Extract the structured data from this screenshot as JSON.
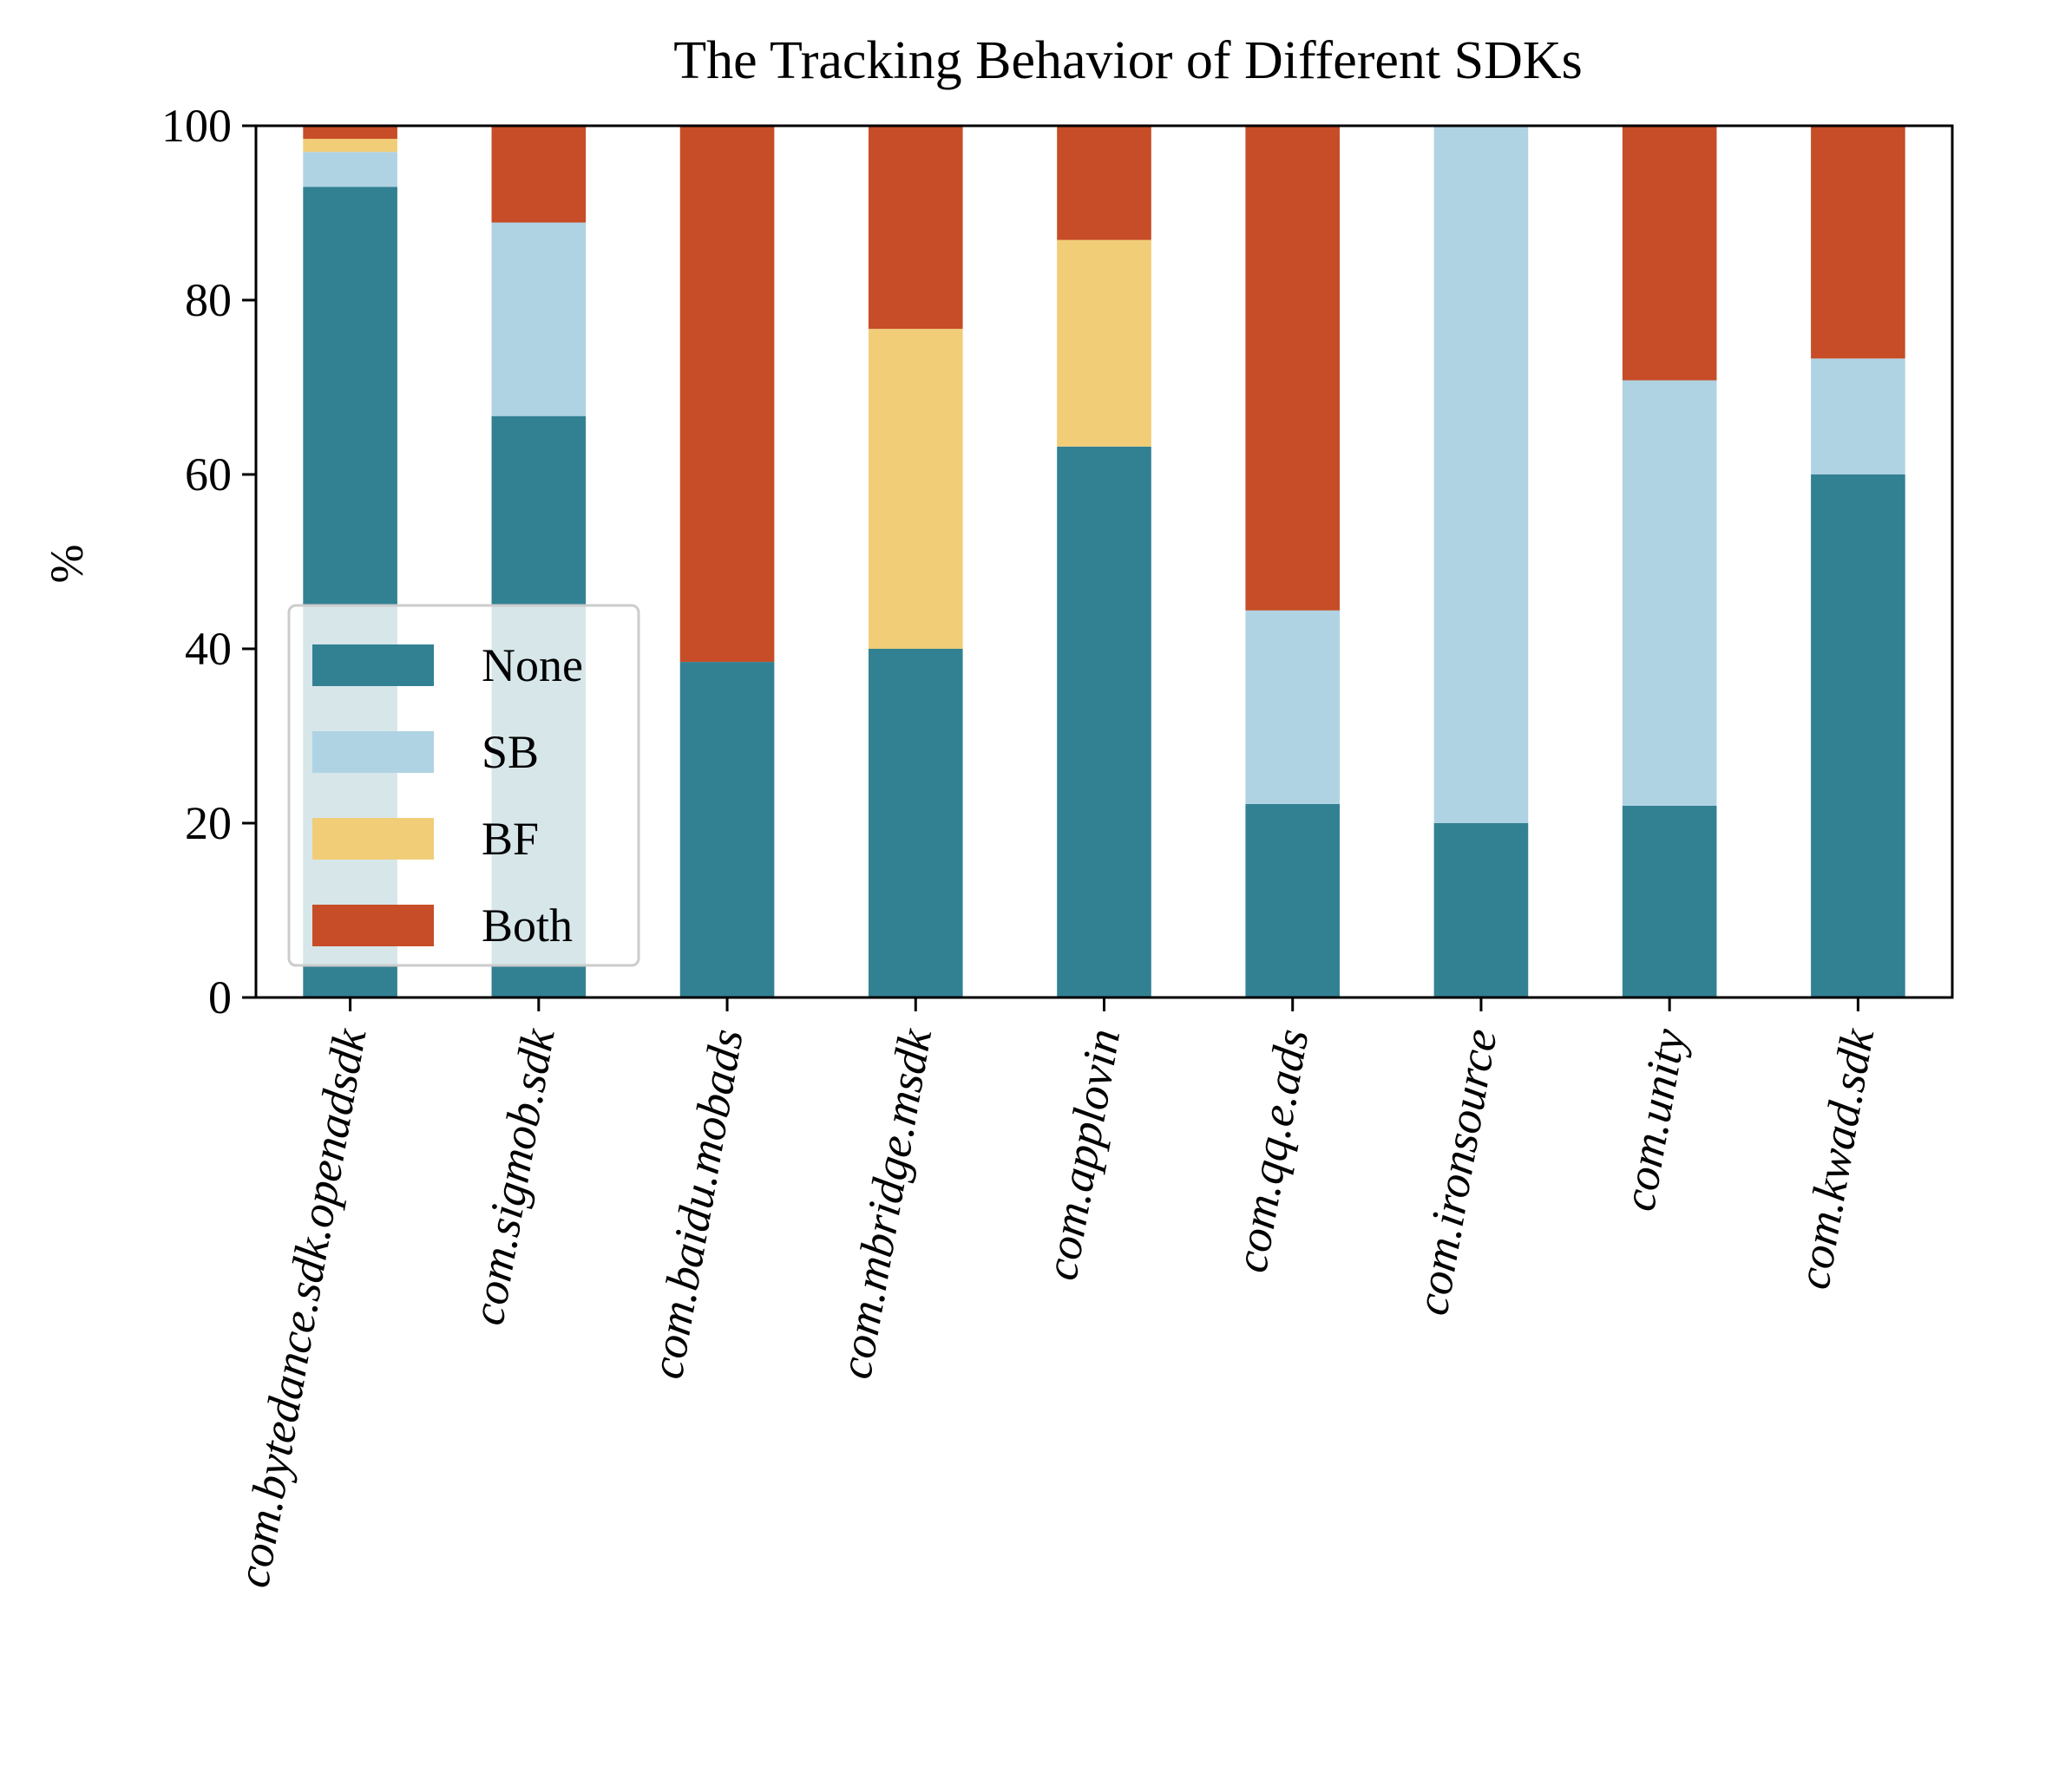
{
  "chart_data": {
    "type": "bar",
    "stacked": true,
    "title": "The Tracking Behavior of Different SDKs",
    "xlabel": "",
    "ylabel": "%",
    "ylim": [
      0,
      100
    ],
    "yticks": [
      "0",
      "20",
      "40",
      "60",
      "80",
      "100"
    ],
    "grid": false,
    "legend_position": "lower-left",
    "categories": [
      "com.bytedance.sdk.openadsdk",
      "com.sigmob.sdk",
      "com.baidu.mobads",
      "com.mbridge.msdk",
      "com.applovin",
      "com.qq.e.ads",
      "com.ironsource",
      "com.unity",
      "com.kwad.sdk"
    ],
    "series": [
      {
        "name": "None",
        "color": "#328193",
        "values": [
          93.0,
          66.7,
          38.5,
          40.0,
          63.2,
          22.2,
          20.0,
          22.0,
          60.0
        ]
      },
      {
        "name": "SB",
        "color": "#afd3e3",
        "values": [
          4.0,
          22.2,
          0.0,
          0.0,
          0.0,
          22.2,
          80.0,
          48.8,
          13.3
        ]
      },
      {
        "name": "BF",
        "color": "#f1cd78",
        "values": [
          1.5,
          0.0,
          0.0,
          36.7,
          23.7,
          0.0,
          0.0,
          0.0,
          0.0
        ]
      },
      {
        "name": "Both",
        "color": "#c64d27",
        "values": [
          1.5,
          11.1,
          61.5,
          23.3,
          13.1,
          55.6,
          0.0,
          29.2,
          26.7
        ]
      }
    ]
  }
}
